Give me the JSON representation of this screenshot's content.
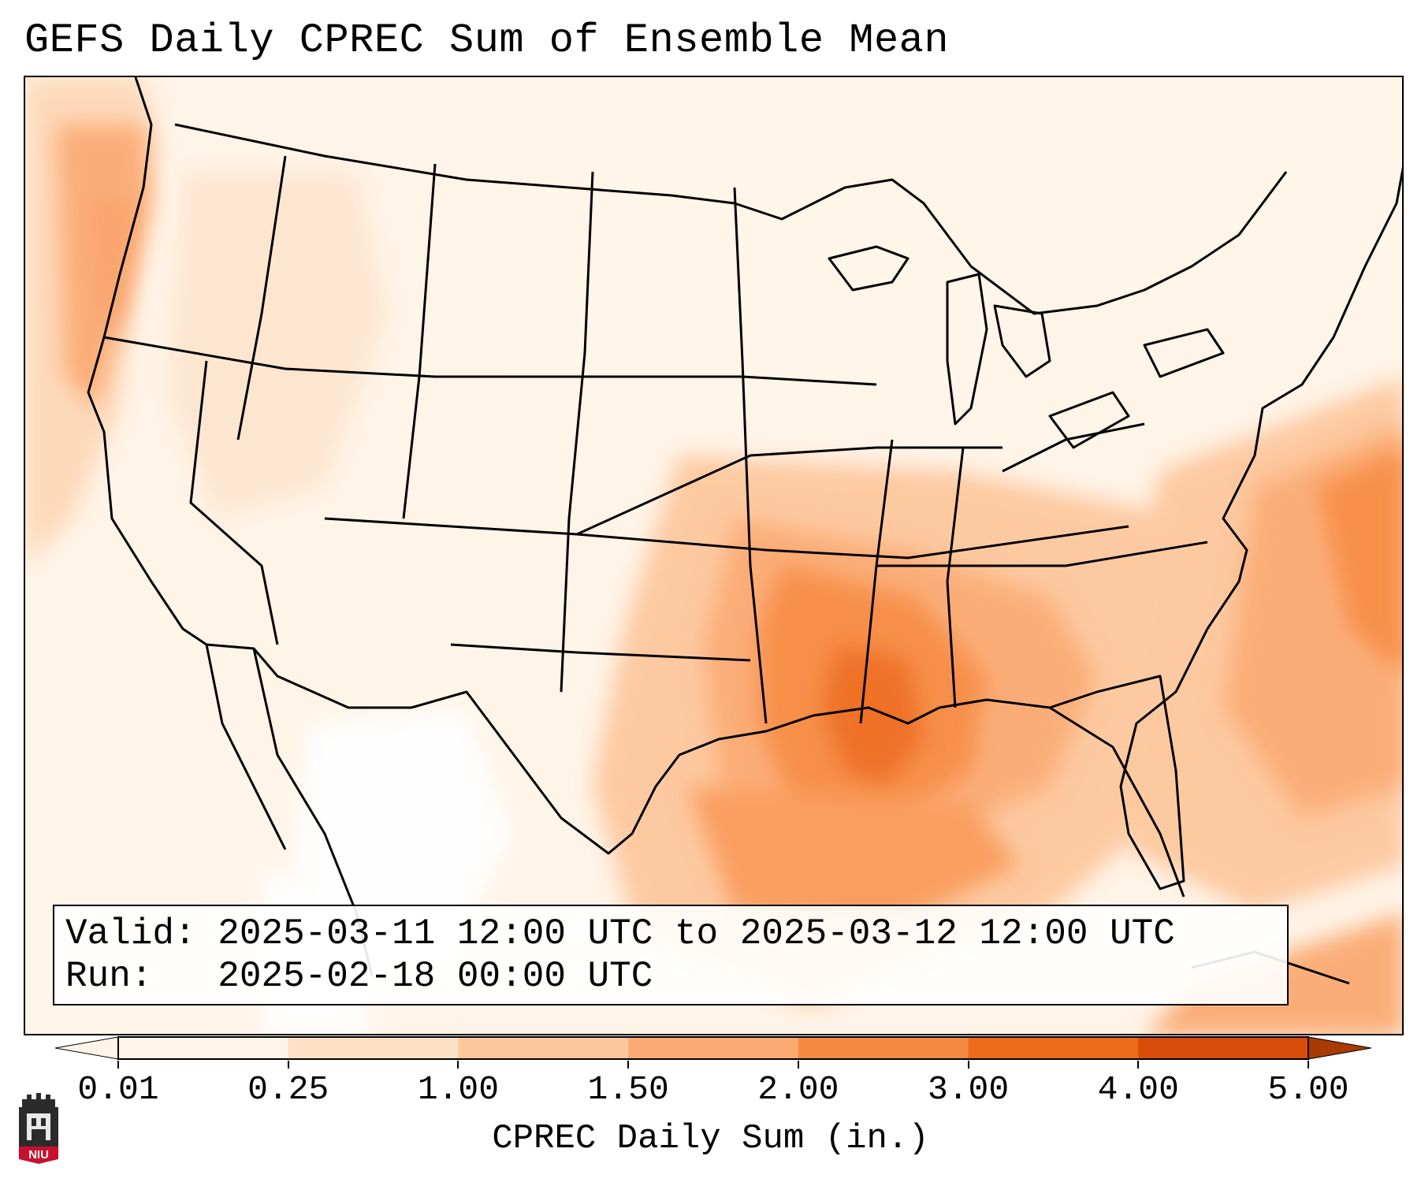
{
  "title": "GEFS Daily CPREC Sum of Ensemble Mean",
  "info": {
    "valid_label": "Valid:",
    "valid_text": "2025-03-11 12:00 UTC to 2025-03-12 12:00 UTC",
    "run_label": "Run:",
    "run_text": "2025-02-18 00:00 UTC"
  },
  "colorbar": {
    "label": "CPREC Daily Sum (in.)",
    "ticks": [
      "0.01",
      "0.25",
      "1.00",
      "1.50",
      "2.00",
      "3.00",
      "4.00",
      "5.00"
    ],
    "colors": [
      "#fff4e8",
      "#fde0c5",
      "#fdc79d",
      "#fbaa72",
      "#f78a42",
      "#ee6b1c",
      "#d94d0a",
      "#a93a03"
    ]
  },
  "map": {
    "region": "CONUS",
    "max_area": "Gulf Coast / Mississippi"
  },
  "logo": {
    "text": "NIU"
  }
}
